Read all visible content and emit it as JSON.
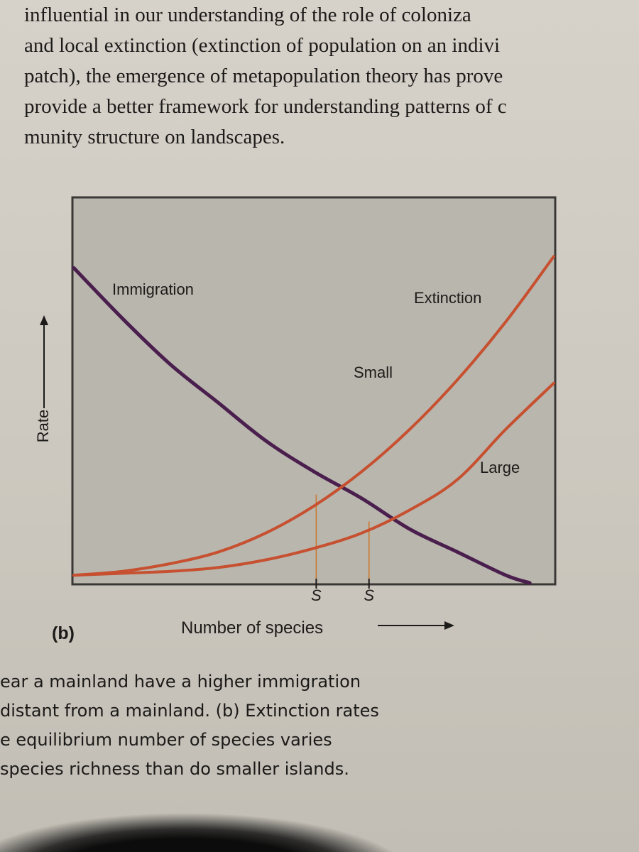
{
  "body_text": {
    "lines": [
      "influential in our understanding of the role of coloniza",
      "and local extinction (extinction of population on an indivi",
      "patch), the emergence of metapopulation theory has prove",
      "provide a better framework for understanding patterns of c",
      "munity structure on landscapes."
    ]
  },
  "figure": {
    "panel_label": "(b)",
    "colors": {
      "immigration": "#4a1f4d",
      "extinction": "#c6502f",
      "plot_bg": "#b9b6ae",
      "frame": "#3a3836"
    }
  },
  "chart_data": {
    "type": "line",
    "title": "",
    "xlabel": "Number of species",
    "ylabel": "Rate",
    "xlim": [
      0,
      100
    ],
    "ylim": [
      0,
      100
    ],
    "grid": false,
    "series": [
      {
        "name": "Immigration",
        "x": [
          0,
          10,
          20,
          30,
          40,
          50,
          60,
          70,
          80,
          90,
          95
        ],
        "y": [
          82,
          69,
          57,
          47,
          37,
          29,
          22,
          14,
          8,
          2,
          0
        ]
      },
      {
        "name": "Extinction Small",
        "x": [
          0,
          10,
          20,
          30,
          40,
          50,
          60,
          70,
          80,
          90,
          100
        ],
        "y": [
          2,
          3,
          5,
          8,
          13,
          20,
          29,
          40,
          53,
          68,
          85
        ]
      },
      {
        "name": "Extinction Large",
        "x": [
          0,
          10,
          20,
          30,
          40,
          50,
          60,
          70,
          80,
          90,
          100
        ],
        "y": [
          2,
          2.5,
          3,
          4,
          6,
          9,
          13,
          19,
          27,
          40,
          52
        ]
      }
    ],
    "curve_labels": {
      "immigration": "Immigration",
      "extinction": "Extinction",
      "small": "Small",
      "large": "Large"
    },
    "equilibria": [
      {
        "label": "S",
        "x": 50.5,
        "y": 23
      },
      {
        "label": "S",
        "x": 61.5,
        "y": 16
      }
    ]
  },
  "caption": {
    "lines": [
      "ear a mainland have a higher immigration",
      "distant from a mainland. (b) Extinction rates",
      "e equilibrium number of species varies",
      "species richness than do smaller islands."
    ]
  }
}
